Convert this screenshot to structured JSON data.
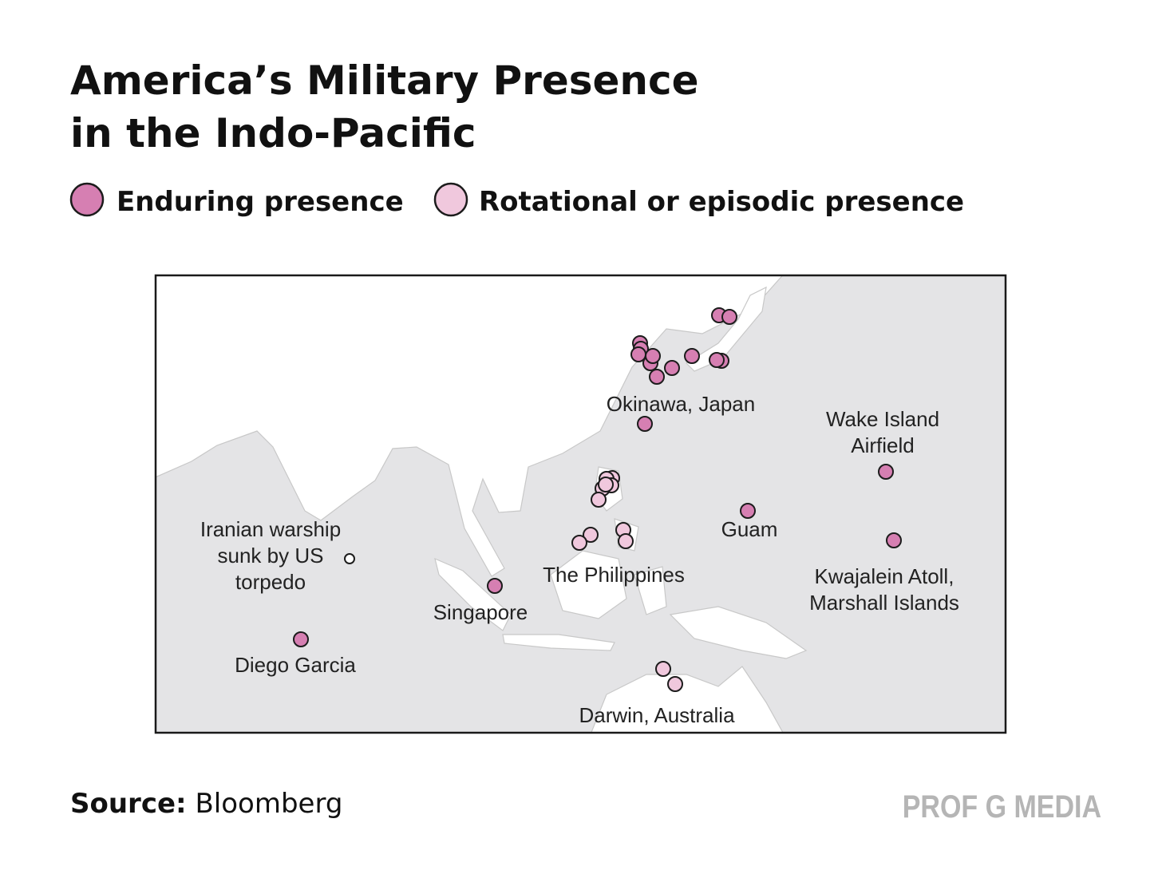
{
  "title": [
    "America’s Military Presence",
    "in the Indo-Pacific"
  ],
  "legend": [
    "Enduring presence",
    "Rotational or episodic presence"
  ],
  "map": {
    "labels": [
      [
        "Okinawa, Japan"
      ],
      [
        "Wake Island",
        "Airfield"
      ],
      [
        "Guam"
      ],
      [
        "Kwajalein Atoll,",
        "Marshall Islands"
      ],
      [
        "The Philippines"
      ],
      [
        "Iranian warship",
        "sunk by US",
        "torpedo"
      ],
      [
        "Singapore"
      ],
      [
        "Diego Garcia"
      ],
      [
        "Darwin, Australia"
      ]
    ]
  },
  "source": {
    "label": "Source:",
    "value": "Bloomberg"
  },
  "brand": "PROF G MEDIA"
}
